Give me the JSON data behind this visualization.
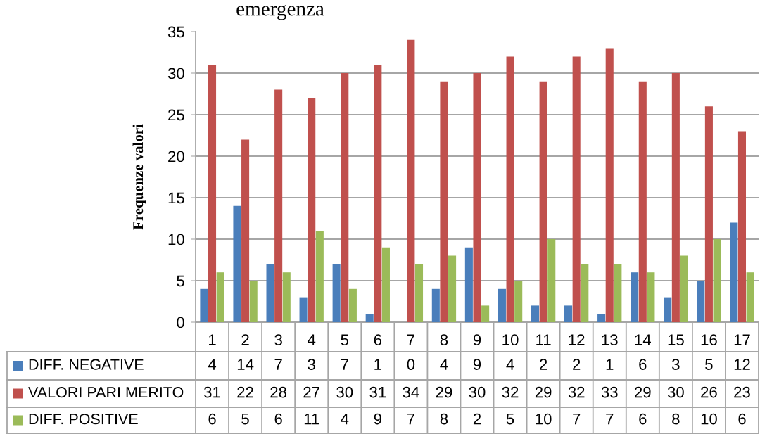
{
  "chart_data": {
    "type": "bar",
    "title": "emergenza",
    "ylabel": "Frequenze valori",
    "categories": [
      "1",
      "2",
      "3",
      "4",
      "5",
      "6",
      "7",
      "8",
      "9",
      "10",
      "11",
      "12",
      "13",
      "14",
      "15",
      "16",
      "17"
    ],
    "series": [
      {
        "name": "DIFF. NEGATIVE",
        "color": "#4a7ebb",
        "values": [
          4,
          14,
          7,
          3,
          7,
          1,
          0,
          4,
          9,
          4,
          2,
          2,
          1,
          6,
          3,
          5,
          12
        ]
      },
      {
        "name": "VALORI PARI MERITO",
        "color": "#c0504d",
        "values": [
          31,
          22,
          28,
          27,
          30,
          31,
          34,
          29,
          30,
          32,
          29,
          32,
          33,
          29,
          30,
          26,
          23
        ]
      },
      {
        "name": "DIFF. POSITIVE",
        "color": "#9bbb59",
        "values": [
          6,
          5,
          6,
          11,
          4,
          9,
          7,
          8,
          2,
          5,
          10,
          7,
          7,
          6,
          8,
          10,
          6
        ]
      }
    ],
    "ylim": [
      0,
      35
    ],
    "yticks": [
      0,
      5,
      10,
      15,
      20,
      25,
      30,
      35
    ],
    "grid": "y",
    "data_labels": true,
    "legend": "bottom left"
  }
}
